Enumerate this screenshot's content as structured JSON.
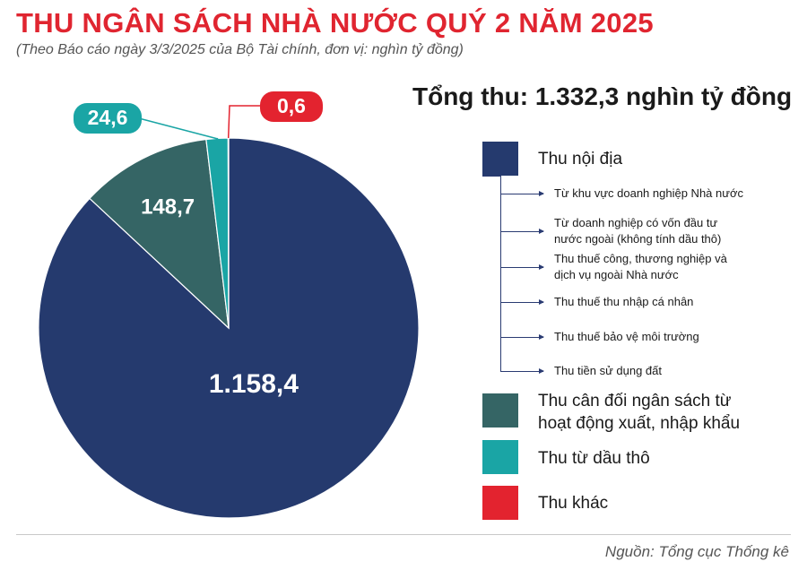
{
  "header": {
    "title": "THU NGÂN SÁCH NHÀ NƯỚC QUÝ 2 NĂM 2025",
    "subtitle": "(Theo Báo cáo ngày 3/3/2025 của Bộ Tài chính, đơn vị: nghìn tỷ đồng)"
  },
  "total_label": "Tổng thu: 1.332,3 nghìn tỷ đồng",
  "chart_data": {
    "type": "pie",
    "title": "THU NGÂN SÁCH NHÀ NƯỚC QUÝ 2 NĂM 2025",
    "unit": "nghìn tỷ đồng",
    "total": 1332.3,
    "slices": [
      {
        "label": "Thu nội địa",
        "value": 1158.4,
        "display": "1.158,4",
        "color": "#253a6e"
      },
      {
        "label": "Thu cân đối ngân sách từ hoạt động xuất, nhập khẩu",
        "value": 148.7,
        "display": "148,7",
        "color": "#356565"
      },
      {
        "label": "Thu từ dầu thô",
        "value": 24.6,
        "display": "24,6",
        "color": "#1aa5a5"
      },
      {
        "label": "Thu khác",
        "value": 0.6,
        "display": "0,6",
        "color": "#e3232f"
      }
    ]
  },
  "legend": {
    "items": [
      {
        "label_lines": [
          "Thu nội địa"
        ],
        "color": "#253a6e"
      },
      {
        "label_lines": [
          "Thu cân đối ngân sách từ",
          "hoạt động xuất, nhập khẩu"
        ],
        "color": "#356565"
      },
      {
        "label_lines": [
          "Thu từ dầu thô"
        ],
        "color": "#1aa5a5"
      },
      {
        "label_lines": [
          "Thu khác"
        ],
        "color": "#e3232f"
      }
    ],
    "sub_items": [
      {
        "lines": [
          "Từ khu vực doanh nghiệp Nhà nước"
        ]
      },
      {
        "lines": [
          "Từ doanh nghiệp có vốn đầu tư",
          "nước ngoài (không tính dầu thô)"
        ]
      },
      {
        "lines": [
          "Thu thuế công, thương nghiệp và",
          "dịch vụ ngoài Nhà nước"
        ]
      },
      {
        "lines": [
          "Thu thuế thu nhập cá nhân"
        ]
      },
      {
        "lines": [
          "Thu thuế bảo vệ môi trường"
        ]
      },
      {
        "lines": [
          "Thu tiền sử dụng đất"
        ]
      }
    ]
  },
  "source": "Nguồn: Tổng cục Thống kê"
}
